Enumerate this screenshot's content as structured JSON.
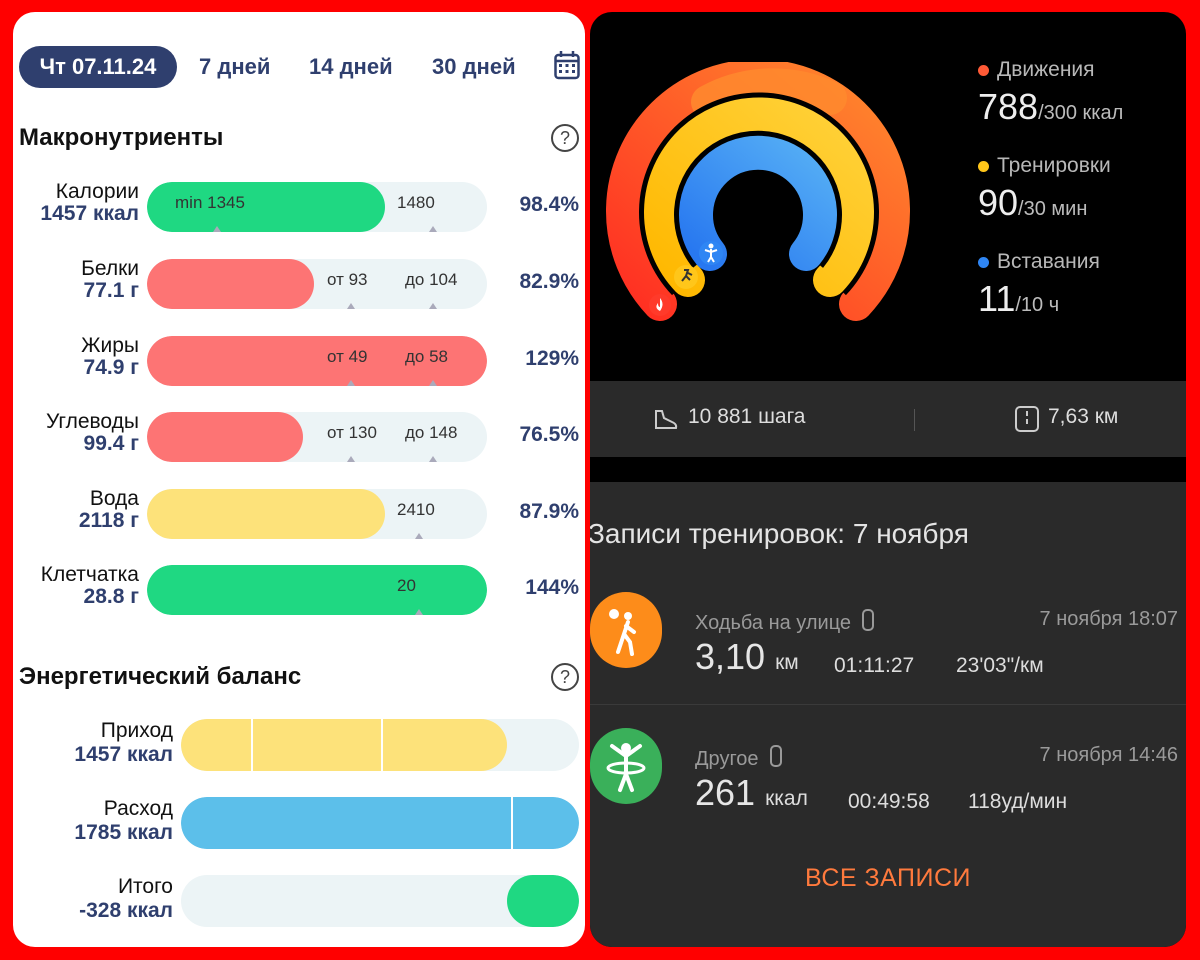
{
  "left": {
    "tabs": [
      {
        "label": "Чт 07.11.24",
        "active": true
      },
      {
        "label": "7 дней"
      },
      {
        "label": "14 дней"
      },
      {
        "label": "30 дней"
      }
    ],
    "macros_title": "Макронутриенты",
    "help_glyph": "?",
    "macros": [
      {
        "label": "Калории",
        "value": "1457 ккал",
        "fill_fraction": 0.7,
        "color": "#1fd882",
        "marks": [
          "min 1345",
          "1480"
        ],
        "percent": "98.4%"
      },
      {
        "label": "Белки",
        "value": "77.1 г",
        "fill_fraction": 0.49,
        "color": "#fd7474",
        "marks": [
          "от 93",
          "до 104"
        ],
        "percent": "82.9%"
      },
      {
        "label": "Жиры",
        "value": "74.9 г",
        "fill_fraction": 1.0,
        "color": "#fd7474",
        "marks": [
          "от 49",
          "до 58"
        ],
        "percent": "129%"
      },
      {
        "label": "Углеводы",
        "value": "99.4 г",
        "fill_fraction": 0.46,
        "color": "#fd7474",
        "marks": [
          "от 130",
          "до 148"
        ],
        "percent": "76.5%"
      },
      {
        "label": "Вода",
        "value": "2118 г",
        "fill_fraction": 0.7,
        "color": "#fde27a",
        "marks": [
          "2410"
        ],
        "percent": "87.9%"
      },
      {
        "label": "Клетчатка",
        "value": "28.8 г",
        "fill_fraction": 1.0,
        "color": "#1fd882",
        "marks": [
          "20"
        ],
        "percent": "144%"
      }
    ],
    "energy_title": "Энергетический баланс",
    "energy": [
      {
        "label": "Приход",
        "value": "1457 ккал",
        "fill_fraction": 0.82,
        "color": "#fde27a"
      },
      {
        "label": "Расход",
        "value": "1785 ккал",
        "fill_fraction": 1.0,
        "color": "#5cbfea"
      },
      {
        "label": "Итого",
        "value": "-328 ккал",
        "fill_fraction": 0.18,
        "color": "#1fd882"
      }
    ]
  },
  "right": {
    "rings": [
      {
        "name": "Движения",
        "value": "788",
        "unit": "/300 ккал",
        "color": "#ff5a36",
        "progress": 2.63
      },
      {
        "name": "Тренировки",
        "value": "90",
        "unit": "/30 мин",
        "color": "#ffc61a",
        "progress": 3.0
      },
      {
        "name": "Вставания",
        "value": "11",
        "unit": "/10 ч",
        "color": "#2f86f4",
        "progress": 1.1
      }
    ],
    "steps": "10 881 шага",
    "distance": "7,63 км",
    "records_title": "Записи тренировок: 7 ноября",
    "records": [
      {
        "name": "Ходьба на улице",
        "time": "7 ноября 18:07",
        "big": "3,10",
        "big_unit": "км",
        "stat1": "01:11:27",
        "stat2": "23'03\"/км",
        "color": "#fd8c1a",
        "icon": "walking-person-icon"
      },
      {
        "name": "Другое",
        "time": "7 ноября 14:46",
        "big": "261",
        "big_unit": "ккал",
        "stat1": "00:49:58",
        "stat2": "118уд/мин",
        "color": "#3ab05a",
        "icon": "hula-hoop-person-icon"
      }
    ],
    "all_button": "ВСЕ ЗАПИСИ"
  }
}
